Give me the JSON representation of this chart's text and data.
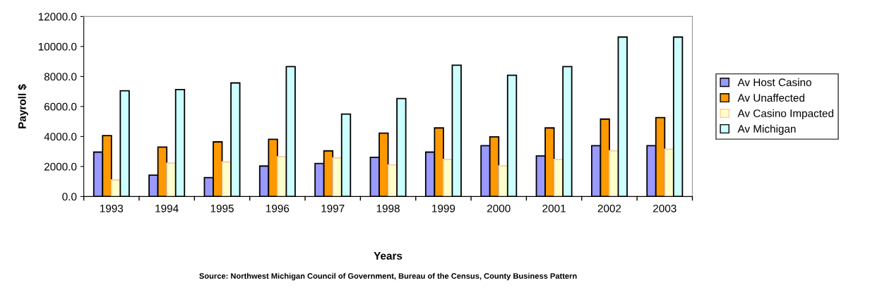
{
  "chart_data": {
    "type": "bar",
    "categories": [
      "1993",
      "1994",
      "1995",
      "1996",
      "1997",
      "1998",
      "1999",
      "2000",
      "2001",
      "2002",
      "2003"
    ],
    "series": [
      {
        "name": "Av Host Casino",
        "color": "#9999ff",
        "values": [
          2960,
          1420,
          1260,
          2030,
          2200,
          2610,
          2960,
          3390,
          2710,
          3390,
          3390
        ]
      },
      {
        "name": "Av Unaffected",
        "color": "#ff9900",
        "values": [
          4060,
          3290,
          3640,
          3810,
          3040,
          4220,
          4570,
          3980,
          4570,
          5160,
          5260
        ]
      },
      {
        "name": "Av Casino Impacted",
        "color": "#ffffcc",
        "values": [
          1100,
          2220,
          2300,
          2650,
          2570,
          2110,
          2470,
          2050,
          2470,
          3050,
          3150
        ]
      },
      {
        "name": "Av Michigan",
        "color": "#ccffff",
        "values": [
          7050,
          7130,
          7570,
          8660,
          5490,
          6530,
          8750,
          8080,
          8660,
          10630,
          10630
        ]
      }
    ],
    "ylabel": "Payroll $",
    "xlabel": "Years",
    "ylim": [
      0,
      12000
    ],
    "yticks": [
      {
        "value": 0,
        "label": "0.0"
      },
      {
        "value": 2000,
        "label": "2000.0"
      },
      {
        "value": 4000,
        "label": "4000.0"
      },
      {
        "value": 6000,
        "label": "6000.0"
      },
      {
        "value": 8000,
        "label": "8000.0"
      },
      {
        "value": 10000,
        "label": "10000.0"
      },
      {
        "value": 12000,
        "label": "12000.0"
      }
    ],
    "legend": "right",
    "grid": false,
    "annotations": [
      "Source: Northwest Michigan Council of Government, Bureau of the Census, County Business Pattern"
    ]
  }
}
